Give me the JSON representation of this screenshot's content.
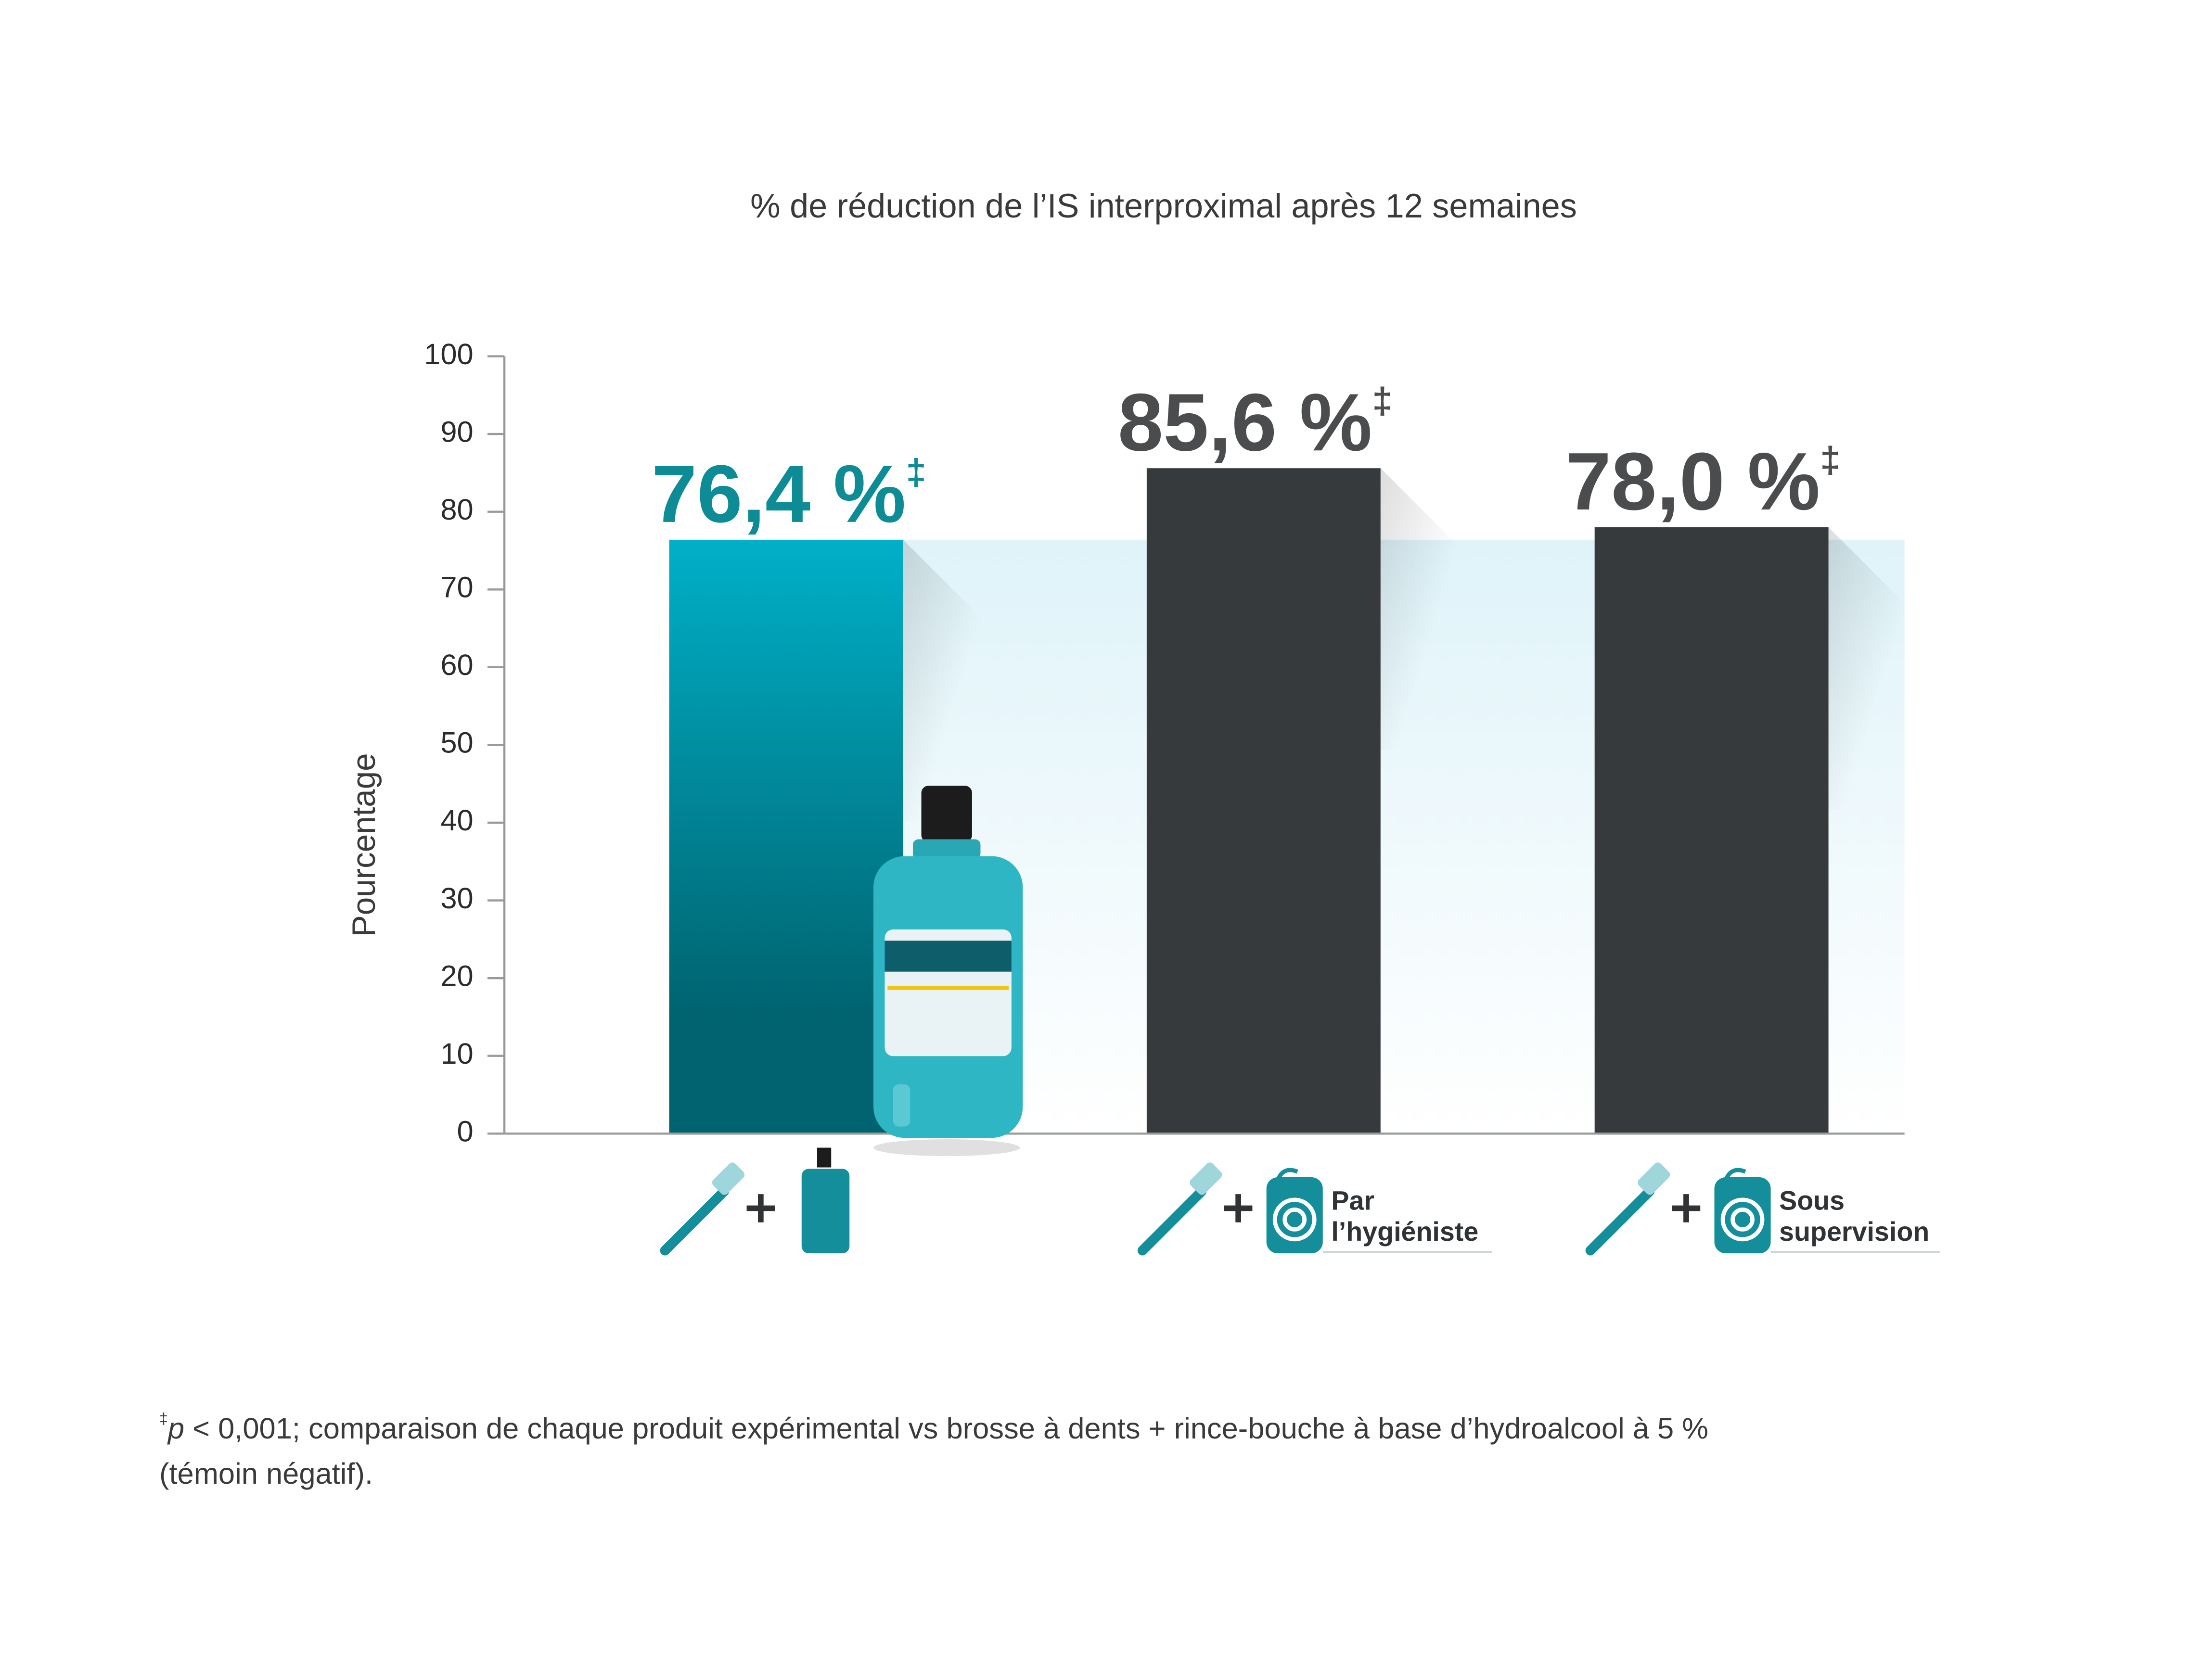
{
  "chart_data": {
    "type": "bar",
    "title": "% de réduction de l’IS interproximal après 12 semaines",
    "ylabel": "Pourcentage",
    "categories": [
      null,
      "Par l’hygiéniste",
      "Sous supervision"
    ],
    "values": [
      76.4,
      85.6,
      78.0
    ],
    "value_labels": [
      "76,4 %",
      "85,6 %",
      "78,0 %"
    ],
    "value_label_marker": "‡",
    "colors": [
      "#00b0c8",
      "#363a3d",
      "#363a3d"
    ],
    "gradient_end": "#00636f",
    "label_colors": [
      "#0e8c96",
      "#4a4c4e",
      "#4a4c4e"
    ],
    "ylim": [
      0,
      100
    ],
    "yticks": [
      0,
      10,
      20,
      30,
      40,
      50,
      60,
      70,
      80,
      90,
      100
    ],
    "grid": false,
    "footnote": {
      "marker": "‡",
      "italic": "p",
      "line1": " < 0,001; comparaison de chaque produit expérimental vs brosse à dents + rince-bouche à base d’hydroalcool à 5 %",
      "line2": "(témoin négatif)."
    }
  }
}
